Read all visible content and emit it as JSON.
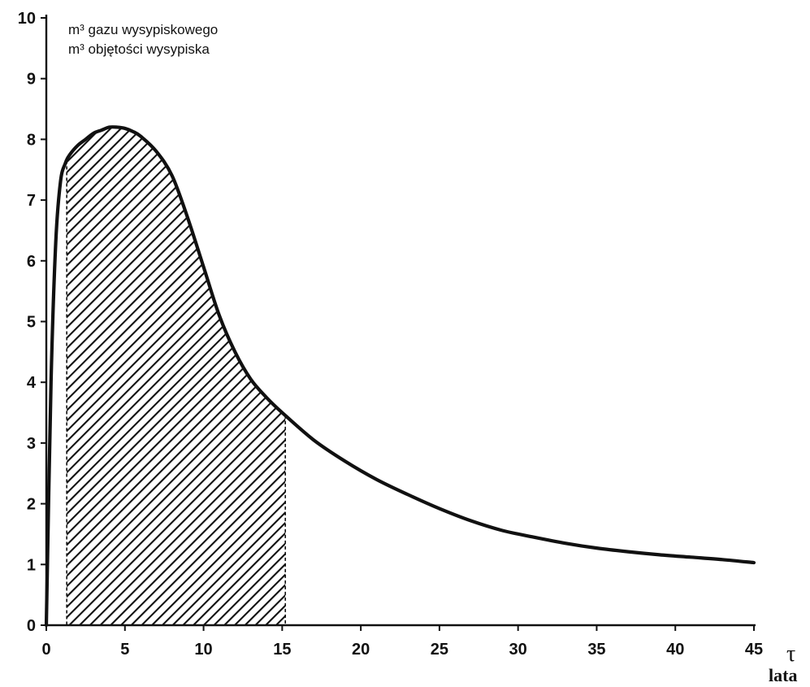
{
  "chart_data": {
    "type": "line",
    "title": "",
    "ylabel_line1": "m³ gazu wysypiskowego",
    "ylabel_line2": "m³ objętości wysypiska",
    "xlabel_symbol": "τ",
    "xlabel_unit": "lata",
    "xlim": [
      0,
      45
    ],
    "ylim": [
      0,
      10
    ],
    "xticks": [
      0,
      5,
      10,
      15,
      20,
      25,
      30,
      35,
      40,
      45
    ],
    "yticks": [
      0,
      1,
      2,
      3,
      4,
      5,
      6,
      7,
      8,
      9,
      10
    ],
    "grid": false,
    "series": [
      {
        "x": [
          0,
          0.3,
          0.6,
          0.9,
          1.2,
          1.5,
          2,
          2.5,
          3,
          3.5,
          4,
          4.5,
          5,
          5.5,
          6,
          7,
          8,
          9,
          10,
          11,
          12,
          13,
          14,
          15,
          17,
          19,
          21,
          23,
          25,
          27,
          29,
          31,
          33,
          35,
          37,
          39,
          41,
          43,
          45
        ],
        "y": [
          0,
          4.0,
          6.3,
          7.3,
          7.6,
          7.75,
          7.9,
          8.0,
          8.1,
          8.15,
          8.2,
          8.2,
          8.18,
          8.13,
          8.05,
          7.8,
          7.4,
          6.7,
          5.9,
          5.1,
          4.5,
          4.05,
          3.75,
          3.5,
          3.05,
          2.7,
          2.4,
          2.15,
          1.92,
          1.72,
          1.56,
          1.45,
          1.35,
          1.27,
          1.21,
          1.16,
          1.12,
          1.08,
          1.03
        ]
      }
    ],
    "shaded_region": {
      "x_start": 1.3,
      "x_end": 15.2,
      "pattern": "diagonal-hatch"
    },
    "colors": {
      "line": "#111111",
      "axis": "#111111",
      "hatch": "#111111"
    }
  }
}
